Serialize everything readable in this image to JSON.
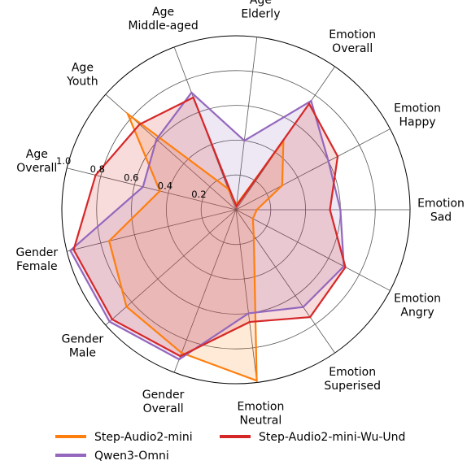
{
  "chart_data": {
    "type": "radar",
    "axes": [
      [
        "Emotion",
        "Sad"
      ],
      [
        "Emotion",
        "Happy"
      ],
      [
        "Emotion",
        "Overall"
      ],
      [
        "Age",
        "Elderly"
      ],
      [
        "Age",
        "Middle-aged"
      ],
      [
        "Age",
        "Youth"
      ],
      [
        "Age",
        "Overall"
      ],
      [
        "Gender",
        "Female"
      ],
      [
        "Gender",
        "Male"
      ],
      [
        "Gender",
        "Overall"
      ],
      [
        "Emotion",
        "Neutral"
      ],
      [
        "Emotion",
        "Superised"
      ],
      [
        "Emotion",
        "Angry"
      ]
    ],
    "rlim": [
      0,
      1.0
    ],
    "rticks": [
      "0.2",
      "0.4",
      "0.6",
      "0.8",
      "1.0"
    ],
    "rtick_values": [
      0.2,
      0.4,
      0.6,
      0.8,
      1.0
    ],
    "series": [
      {
        "name": "Step-Audio2-mini",
        "color": "#ff7f0e",
        "values": [
          0.12,
          0.3,
          0.48,
          0.03,
          0.13,
          0.83,
          0.45,
          0.75,
          0.84,
          0.88,
          0.99,
          0.18,
          0.11
        ]
      },
      {
        "name": "Qwen3-Omni",
        "color": "#9467bd",
        "values": [
          0.6,
          0.6,
          0.76,
          0.4,
          0.72,
          0.61,
          0.55,
          0.98,
          0.97,
          0.92,
          0.6,
          0.68,
          0.7
        ]
      },
      {
        "name": "Step-Audio2-mini-Wu-Und",
        "color": "#d62728",
        "values": [
          0.54,
          0.66,
          0.74,
          0.02,
          0.69,
          0.74,
          0.83,
          0.96,
          0.95,
          0.9,
          0.65,
          0.75,
          0.71
        ]
      }
    ],
    "grid": true,
    "legend": "bottom"
  }
}
